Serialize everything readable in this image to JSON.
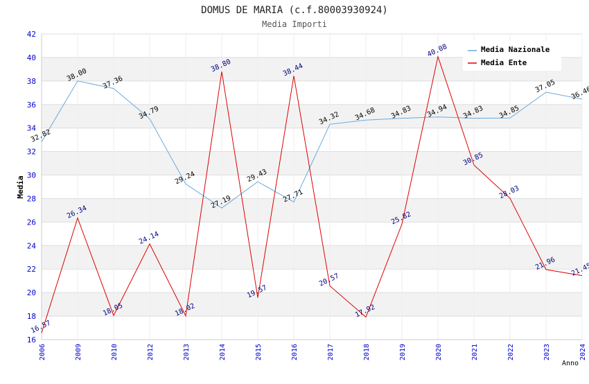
{
  "chart_data": {
    "type": "line",
    "title": "DOMUS DE MARIA (c.f.80003930924)",
    "subtitle": "Media Importi",
    "xlabel": "Anno",
    "ylabel": "Media",
    "ylim": [
      16,
      42
    ],
    "y_ticks": [
      16,
      18,
      20,
      22,
      24,
      26,
      28,
      30,
      32,
      34,
      36,
      38,
      40,
      42
    ],
    "x": [
      "2006",
      "2009",
      "2010",
      "2012",
      "2013",
      "2014",
      "2015",
      "2016",
      "2017",
      "2018",
      "2019",
      "2020",
      "2021",
      "2022",
      "2023",
      "2024"
    ],
    "grid": true,
    "legend_position": "top-right",
    "series": [
      {
        "name": "Media Nazionale",
        "color": "#6aa8de",
        "values": [
          32.82,
          38.0,
          37.36,
          34.79,
          29.24,
          27.19,
          29.43,
          27.71,
          34.32,
          34.68,
          34.83,
          34.94,
          34.83,
          34.85,
          37.05,
          36.46
        ],
        "labels": [
          "32.82",
          "38.00",
          "37.36",
          "34.79",
          "29.24",
          "27.19",
          "29.43",
          "27.71",
          "34.32",
          "34.68",
          "34.83",
          "34.94",
          "34.83",
          "34.85",
          "37.05",
          "36.46"
        ]
      },
      {
        "name": "Media Ente",
        "color": "#dd0000",
        "values": [
          16.57,
          26.34,
          18.05,
          24.14,
          18.02,
          38.8,
          19.57,
          38.44,
          20.57,
          17.92,
          25.82,
          40.08,
          30.85,
          28.03,
          21.96,
          21.45
        ],
        "labels": [
          "16.57",
          "26.34",
          "18.05",
          "24.14",
          "18.02",
          "38.80",
          "19.57",
          "38.44",
          "20.57",
          "17.92",
          "25.82",
          "40.08",
          "30.85",
          "28.03",
          "21.96",
          "21.45"
        ]
      }
    ]
  }
}
